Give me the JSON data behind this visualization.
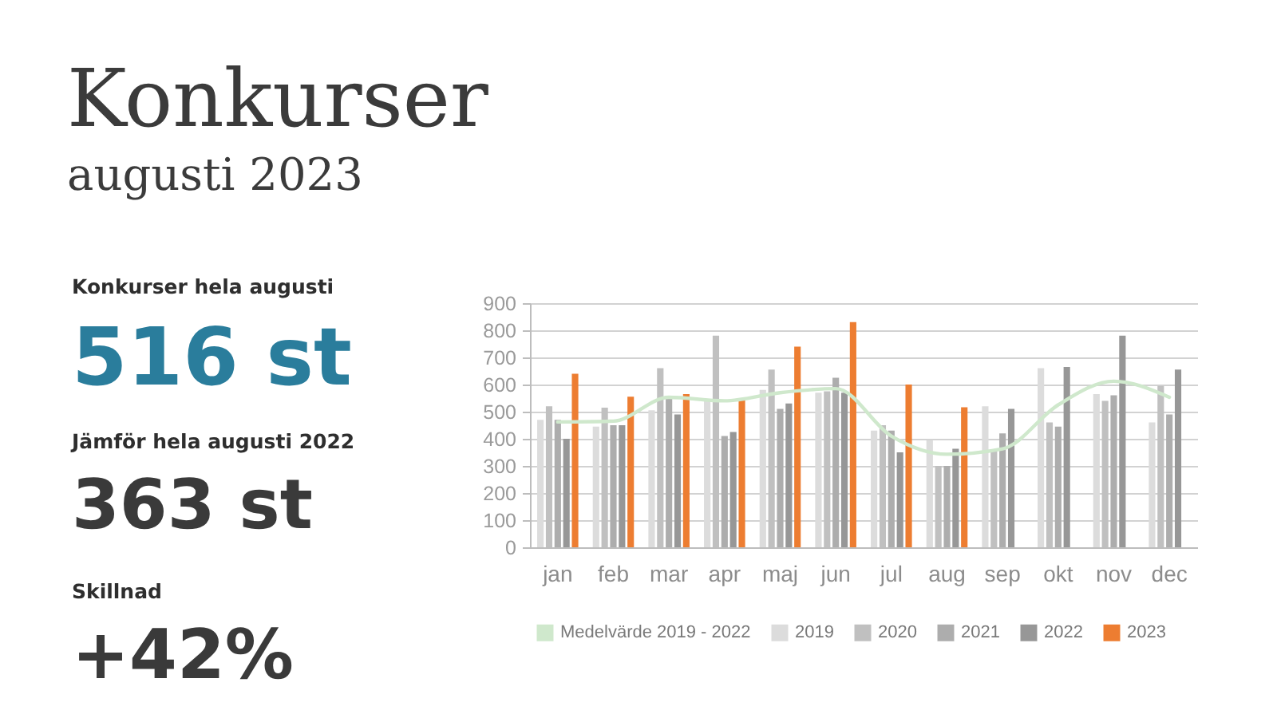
{
  "chart_data": [
    {
      "type": "other",
      "annotations": [
        "Konkurser hela augusti",
        "516 st",
        "Jämför hela augusti 2022",
        "363 st",
        "Skillnad",
        "+42%"
      ]
    },
    {
      "type": "bar",
      "title": "Konkurser",
      "subtitle": "augusti 2023",
      "categories": [
        "jan",
        "feb",
        "mar",
        "apr",
        "maj",
        "jun",
        "jul",
        "aug",
        "sep",
        "okt",
        "nov",
        "dec"
      ],
      "series": [
        {
          "name": "Medelvärde 2019 - 2022",
          "type": "line",
          "color": "#cfe8cc",
          "values": [
            462,
            465,
            553,
            540,
            570,
            585,
            410,
            343,
            363,
            525,
            612,
            553
          ]
        },
        {
          "name": "2019",
          "color": "#dcdcdc",
          "values": [
            470,
            445,
            505,
            545,
            580,
            570,
            430,
            395,
            520,
            660,
            565,
            460
          ]
        },
        {
          "name": "2020",
          "color": "#c0c0c0",
          "values": [
            520,
            515,
            660,
            780,
            655,
            575,
            450,
            300,
            355,
            460,
            540,
            595
          ]
        },
        {
          "name": "2021",
          "color": "#adadad",
          "values": [
            470,
            450,
            555,
            410,
            510,
            625,
            430,
            300,
            420,
            445,
            560,
            490
          ]
        },
        {
          "name": "2022",
          "color": "#979797",
          "values": [
            400,
            450,
            490,
            425,
            530,
            570,
            350,
            363,
            510,
            665,
            780,
            655
          ]
        },
        {
          "name": "2023",
          "color": "#ed7d31",
          "values": [
            640,
            555,
            565,
            545,
            740,
            830,
            600,
            516,
            null,
            null,
            null,
            null
          ]
        }
      ],
      "ylim": [
        0,
        900
      ],
      "yticks": [
        0,
        100,
        200,
        300,
        400,
        500,
        600,
        700,
        800,
        900
      ],
      "grid": "y",
      "legend": "bottom"
    }
  ]
}
